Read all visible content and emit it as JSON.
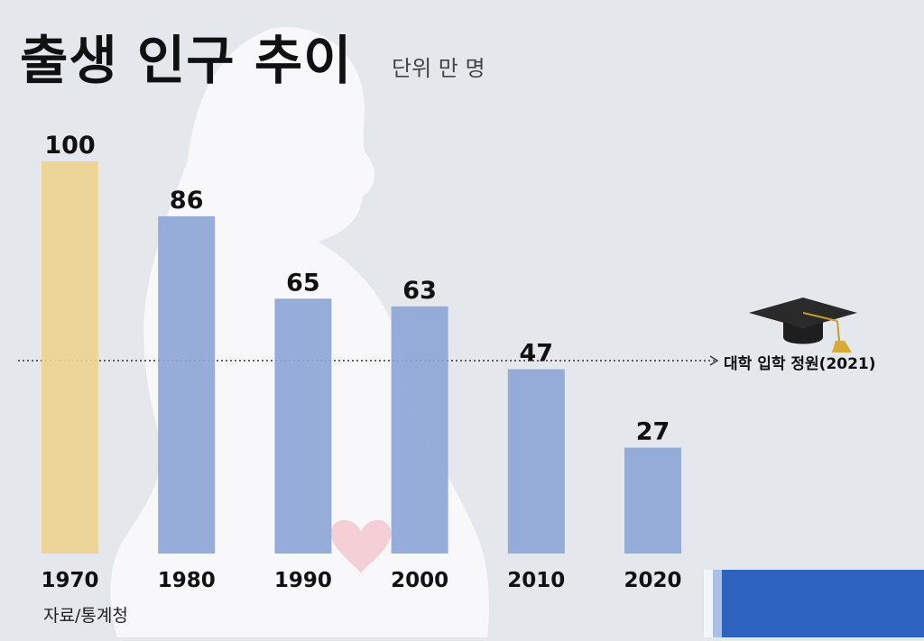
{
  "header": {
    "title": "출생 인구 추이",
    "unit": "단위 만 명"
  },
  "source": "자료/통계청",
  "reference": {
    "label": "대학 입학 정원(2021)",
    "icon": "graduation-cap-icon"
  },
  "colors": {
    "background": "#e4e7ec",
    "highlight_bar": "#edd48f",
    "bar": "#8ea6d6"
  },
  "chart_data": {
    "type": "bar",
    "categories": [
      "1970",
      "1980",
      "1990",
      "2000",
      "2010",
      "2020"
    ],
    "values": [
      100,
      86,
      65,
      63,
      47,
      27
    ],
    "title": "출생 인구 추이",
    "unit": "단위 만 명",
    "ylim": [
      0,
      100
    ],
    "reference_line": {
      "label": "대학 입학 정원(2021)"
    },
    "highlight_category": "1970",
    "grid": false,
    "legend": "none"
  }
}
